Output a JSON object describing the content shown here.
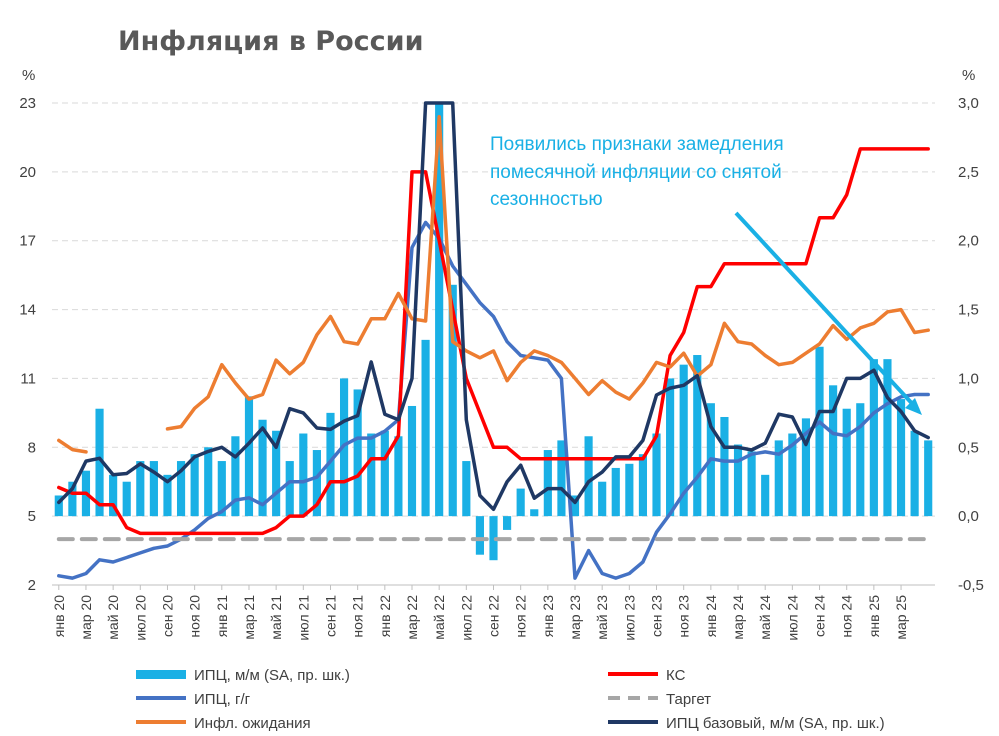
{
  "chart_data": {
    "type": "bar+line",
    "title": "Инфляция в России",
    "left_axis": {
      "unit": "%",
      "min": 2,
      "max": 23,
      "ticks": [
        2,
        5,
        8,
        11,
        14,
        17,
        20,
        23
      ]
    },
    "right_axis": {
      "unit": "%",
      "min": -0.5,
      "max": 3.0,
      "ticks": [
        "-0,5",
        "0,0",
        "0,5",
        "1,0",
        "1,5",
        "2,0",
        "2,5",
        "3,0"
      ],
      "tick_values": [
        -0.5,
        0,
        0.5,
        1.0,
        1.5,
        2.0,
        2.5,
        3.0
      ]
    },
    "grid": "horizontal dashed",
    "legend_position": "bottom",
    "x_labels": [
      "янв 20",
      "мар 20",
      "май 20",
      "июл 20",
      "сен 20",
      "ноя 20",
      "янв 21",
      "мар 21",
      "май 21",
      "июл 21",
      "сен 21",
      "ноя 21",
      "янв 22",
      "мар 22",
      "май 22",
      "июл 22",
      "сен 22",
      "ноя 22",
      "янв 23",
      "мар 23",
      "май 23",
      "июл 23",
      "сен 23",
      "ноя 23",
      "янв 24",
      "мар 24",
      "май 24",
      "июл 24",
      "сен 24",
      "ноя 24",
      "янв 25",
      "мар 25"
    ],
    "annotation": [
      "Появились признаки замедления",
      "помесячной инфляции со снятой",
      "сезонностью"
    ],
    "series": [
      {
        "name": "ИПЦ, м/м (SA, пр. шк.)",
        "type": "bar",
        "axis": "right",
        "color": "#1ab0e5",
        "values": [
          0.15,
          0.25,
          0.33,
          0.78,
          0.3,
          0.25,
          0.4,
          0.4,
          0.3,
          0.4,
          0.45,
          0.5,
          0.4,
          0.58,
          0.87,
          0.7,
          0.62,
          0.4,
          0.6,
          0.48,
          0.75,
          1.0,
          0.92,
          0.6,
          0.62,
          0.58,
          0.8,
          1.28,
          3.0,
          1.68,
          0.4,
          -0.28,
          -0.32,
          -0.1,
          0.2,
          0.05,
          0.48,
          0.55,
          0.15,
          0.58,
          0.25,
          0.35,
          0.38,
          0.45,
          0.6,
          1.0,
          1.1,
          1.17,
          0.82,
          0.72,
          0.52,
          0.47,
          0.3,
          0.55,
          0.6,
          0.71,
          1.23,
          0.95,
          0.78,
          0.82,
          1.14,
          1.14,
          0.85,
          0.62,
          0.55
        ]
      },
      {
        "name": "ИПЦ, г/г",
        "type": "line",
        "axis": "left",
        "color": "#4472c4",
        "values": [
          2.4,
          2.3,
          2.5,
          3.1,
          3.0,
          3.2,
          3.4,
          3.6,
          3.7,
          4.0,
          4.4,
          4.9,
          5.2,
          5.7,
          5.8,
          5.5,
          6.0,
          6.5,
          6.5,
          6.7,
          7.4,
          8.1,
          8.4,
          8.4,
          8.7,
          9.2,
          16.7,
          17.8,
          17.1,
          15.9,
          15.1,
          14.3,
          13.7,
          12.6,
          12.0,
          11.9,
          11.8,
          11.0,
          2.3,
          3.5,
          2.5,
          2.3,
          2.5,
          3.0,
          4.3,
          5.1,
          6.0,
          6.7,
          7.5,
          7.4,
          7.4,
          7.7,
          7.8,
          7.7,
          8.1,
          8.6,
          9.1,
          8.6,
          8.5,
          8.9,
          9.5,
          9.9,
          10.2,
          10.3,
          10.3
        ]
      },
      {
        "name": "КС",
        "type": "line",
        "axis": "left",
        "color": "#ff0000",
        "values": [
          6.25,
          6.0,
          6.0,
          5.5,
          5.5,
          4.5,
          4.25,
          4.25,
          4.25,
          4.25,
          4.25,
          4.25,
          4.25,
          4.25,
          4.25,
          4.25,
          4.5,
          5.0,
          5.0,
          5.5,
          6.5,
          6.5,
          6.75,
          7.5,
          7.5,
          8.5,
          20.0,
          20.0,
          17.0,
          14.0,
          11.0,
          9.5,
          8.0,
          8.0,
          7.5,
          7.5,
          7.5,
          7.5,
          7.5,
          7.5,
          7.5,
          7.5,
          7.5,
          7.5,
          8.5,
          12.0,
          13.0,
          15.0,
          15.0,
          16.0,
          16.0,
          16.0,
          16.0,
          16.0,
          16.0,
          16.0,
          18.0,
          18.0,
          19.0,
          21.0,
          21.0,
          21.0,
          21.0,
          21.0,
          21.0
        ]
      },
      {
        "name": "Таргет",
        "type": "line",
        "axis": "left",
        "color": "#a6a6a6",
        "dash": true,
        "values": [
          4,
          4,
          4,
          4,
          4,
          4,
          4,
          4,
          4,
          4,
          4,
          4,
          4,
          4,
          4,
          4,
          4,
          4,
          4,
          4,
          4,
          4,
          4,
          4,
          4,
          4,
          4,
          4,
          4,
          4,
          4,
          4,
          4,
          4,
          4,
          4,
          4,
          4,
          4,
          4,
          4,
          4,
          4,
          4,
          4,
          4,
          4,
          4,
          4,
          4,
          4,
          4,
          4,
          4,
          4,
          4,
          4,
          4,
          4,
          4,
          4,
          4,
          4,
          4,
          4
        ]
      },
      {
        "name": "Инфл. ожидания",
        "type": "line",
        "axis": "left",
        "color": "#ed7d31",
        "values": [
          8.3,
          7.9,
          7.8,
          null,
          null,
          null,
          null,
          null,
          8.8,
          8.9,
          9.7,
          10.2,
          11.6,
          10.8,
          10.1,
          10.3,
          11.8,
          11.2,
          11.7,
          12.9,
          13.7,
          12.6,
          12.5,
          13.6,
          13.6,
          14.7,
          13.6,
          13.5,
          22.4,
          12.6,
          12.2,
          11.9,
          12.2,
          10.9,
          11.7,
          12.2,
          12.0,
          11.7,
          11.0,
          10.3,
          10.9,
          10.4,
          10.1,
          10.8,
          11.7,
          11.5,
          12.1,
          11.1,
          11.6,
          13.4,
          12.6,
          12.5,
          12.0,
          11.6,
          11.7,
          12.1,
          12.5,
          13.3,
          12.7,
          13.2,
          13.4,
          13.9,
          14.0,
          13.0,
          13.1
        ]
      },
      {
        "name": "ИПЦ базовый, м/м (SA, пр. шк.)",
        "type": "line",
        "axis": "right",
        "color": "#1f3864",
        "values": [
          0.1,
          0.2,
          0.4,
          0.42,
          0.3,
          0.31,
          0.38,
          0.32,
          0.25,
          0.33,
          0.43,
          0.47,
          0.5,
          0.43,
          0.53,
          0.64,
          0.5,
          0.78,
          0.75,
          0.64,
          0.63,
          0.69,
          0.73,
          1.12,
          0.74,
          0.7,
          1.0,
          3.0,
          3.0,
          3.0,
          0.7,
          0.15,
          0.05,
          0.25,
          0.37,
          0.13,
          0.2,
          0.2,
          0.1,
          0.25,
          0.32,
          0.43,
          0.43,
          0.55,
          0.88,
          0.93,
          0.95,
          1.02,
          0.65,
          0.5,
          0.5,
          0.48,
          0.53,
          0.74,
          0.72,
          0.52,
          0.76,
          0.76,
          1.0,
          1.0,
          1.06,
          0.86,
          0.76,
          0.62,
          0.57
        ]
      }
    ]
  }
}
